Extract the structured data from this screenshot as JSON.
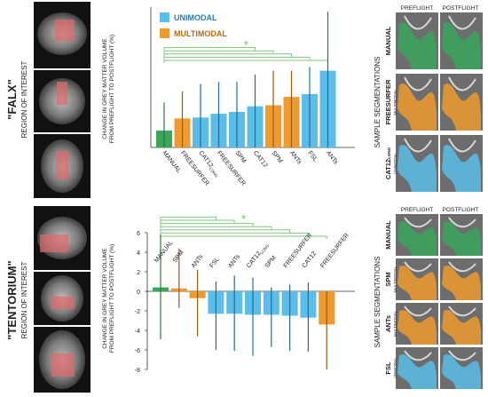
{
  "panels": {
    "top": {
      "region_title": "\"FALX\"",
      "region_subtitle": "REGION OF INTEREST",
      "ylabel_line1": "CHANGE IN GREY MATTER VOLUME",
      "ylabel_line2": "FROM PREFLIGHT TO POSTFLIGHT (%)",
      "legend": [
        {
          "label": "UNIMODAL",
          "color": "#5bbde8"
        },
        {
          "label": "MULTIMODAL",
          "color": "#ef9a2e"
        }
      ],
      "significance_marker": "*",
      "segmentation_title": "SAMPLE SEGMENTATIONS",
      "seg_col_headers": [
        "PREFLIGHT",
        "POSTFLIGHT"
      ],
      "seg_rows": [
        {
          "label": "MANUAL",
          "sub": "",
          "color": "#3aa65a"
        },
        {
          "label": "FREESURFER",
          "sub": "MULTIMODAL",
          "color": "#ef9a2e"
        },
        {
          "label": "CAT12",
          "label_sub": "LONG",
          "sub": "UNIMODAL",
          "color": "#5bbde8"
        }
      ]
    },
    "bottom": {
      "region_title": "\"TENTORIUM\"",
      "region_subtitle": "REGION OF INTEREST",
      "ylabel_line1": "CHANGE IN GREY MATTER VOLUME",
      "ylabel_line2": "FROM PREFLIGHT TO POSTFLIGHT (%)",
      "significance_marker": "*",
      "segmentation_title": "SAMPLE SEGMENTATIONS",
      "seg_col_headers": [
        "PREFLIGHT",
        "POSTFLIGHT"
      ],
      "seg_rows": [
        {
          "label": "MANUAL",
          "sub": "",
          "color": "#3aa65a"
        },
        {
          "label": "SPM",
          "sub": "MULTIMODAL",
          "color": "#ef9a2e"
        },
        {
          "label": "ANTs",
          "sub": "MULTIMODAL",
          "color": "#ef9a2e"
        },
        {
          "label": "FSL",
          "sub": "UNIMODAL",
          "color": "#5bbde8"
        }
      ]
    }
  },
  "chart_data": [
    {
      "type": "bar",
      "categories": [
        "MANUAL",
        "FREESURFER",
        "CAT12_LONG",
        "FREESURFER",
        "SPM",
        "CAT12",
        "SPM",
        "ANTs",
        "FSL",
        "ANTs"
      ],
      "category_labels": [
        {
          "text": "MANUAL",
          "sub": ""
        },
        {
          "text": "FREESURFER",
          "sub": ""
        },
        {
          "text": "CAT12",
          "sub": "LONG"
        },
        {
          "text": "FREESURFER",
          "sub": ""
        },
        {
          "text": "SPM",
          "sub": ""
        },
        {
          "text": "CAT12",
          "sub": ""
        },
        {
          "text": "SPM",
          "sub": ""
        },
        {
          "text": "ANTs",
          "sub": ""
        },
        {
          "text": "FSL",
          "sub": ""
        },
        {
          "text": "ANTs",
          "sub": ""
        }
      ],
      "values": [
        1.8,
        3.1,
        3.2,
        3.6,
        3.8,
        4.4,
        4.5,
        5.4,
        5.7,
        8.2
      ],
      "error_high": [
        4.8,
        6.0,
        6.8,
        7.0,
        7.0,
        7.8,
        8.2,
        8.2,
        8.6,
        14.5
      ],
      "error_low": [
        0.0,
        0.0,
        0.0,
        0.0,
        0.0,
        0.0,
        0.0,
        0.0,
        0.0,
        0.0
      ],
      "groups": [
        "manual",
        "multimodal",
        "unimodal",
        "unimodal",
        "unimodal",
        "unimodal",
        "multimodal",
        "multimodal",
        "unimodal",
        "unimodal"
      ],
      "group_colors": {
        "manual": "#3aa65a",
        "unimodal": "#5bbde8",
        "multimodal": "#ef9a2e"
      },
      "ylim": [
        0,
        15
      ],
      "yticks": [],
      "significance_pairs": [
        [
          0,
          9
        ],
        [
          0,
          8
        ],
        [
          0,
          7
        ],
        [
          0,
          6
        ],
        [
          0,
          5
        ]
      ]
    },
    {
      "type": "bar",
      "categories": [
        "MANUAL",
        "SPM",
        "ANTs",
        "FSL",
        "ANTs",
        "CAT12_LONG",
        "SPM",
        "FREESURFER",
        "CAT12",
        "FREESURFER"
      ],
      "category_labels": [
        {
          "text": "MANUAL",
          "sub": ""
        },
        {
          "text": "SPM",
          "sub": ""
        },
        {
          "text": "ANTs",
          "sub": ""
        },
        {
          "text": "FSL",
          "sub": ""
        },
        {
          "text": "ANTs",
          "sub": ""
        },
        {
          "text": "CAT12",
          "sub": "LONG"
        },
        {
          "text": "SPM",
          "sub": ""
        },
        {
          "text": "FREESURFER",
          "sub": ""
        },
        {
          "text": "CAT12",
          "sub": ""
        },
        {
          "text": "FREESURFER",
          "sub": ""
        }
      ],
      "values": [
        0.4,
        0.3,
        -0.7,
        -2.3,
        -2.3,
        -2.4,
        -2.4,
        -2.5,
        -2.7,
        -3.4
      ],
      "error_high": [
        5.8,
        4.4,
        2.2,
        1.0,
        1.6,
        1.4,
        0.4,
        0.7,
        0.9,
        0.0
      ],
      "error_low": [
        -4.9,
        -1.7,
        -4.6,
        -6.0,
        -6.1,
        -6.6,
        -5.7,
        -6.1,
        -6.2,
        -8.0
      ],
      "groups": [
        "manual",
        "multimodal",
        "multimodal",
        "unimodal",
        "unimodal",
        "unimodal",
        "unimodal",
        "unimodal",
        "unimodal",
        "multimodal"
      ],
      "group_colors": {
        "manual": "#3aa65a",
        "unimodal": "#5bbde8",
        "multimodal": "#ef9a2e"
      },
      "ylim": [
        -8,
        6
      ],
      "yticks": [
        "6",
        "4",
        "2",
        "0",
        "-2",
        "-4",
        "-6",
        "-8"
      ],
      "significance_pairs": [
        [
          0,
          9
        ],
        [
          0,
          8
        ],
        [
          0,
          7
        ],
        [
          0,
          6
        ],
        [
          0,
          5
        ],
        [
          0,
          4
        ],
        [
          0,
          3
        ]
      ]
    }
  ]
}
